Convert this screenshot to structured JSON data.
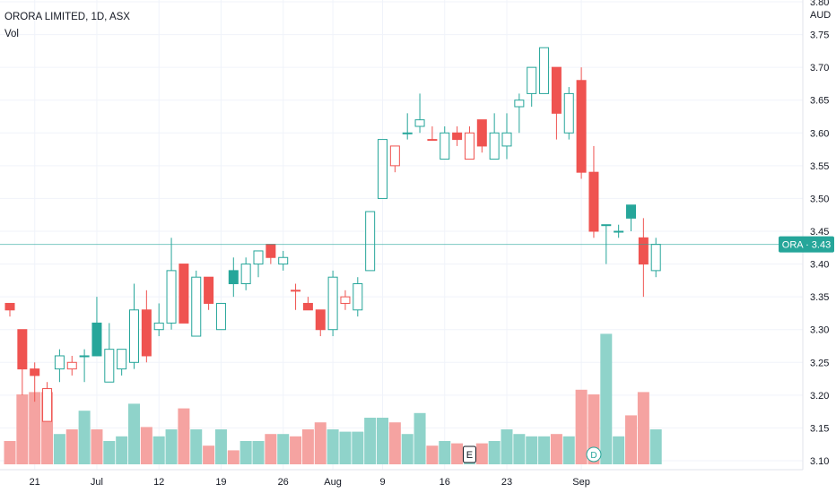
{
  "header": {
    "title": "ORORA LIMITED, 1D, ASX",
    "volume_label": "Vol",
    "currency": "AUD"
  },
  "price_tag": {
    "label": "ORA",
    "value": "3.43"
  },
  "markers": {
    "earnings": "E",
    "dividend": "D"
  },
  "colors": {
    "up": "#26a69a",
    "down": "#ef5350",
    "up_volume": "#8fd3ca",
    "down_volume": "#f5a3a1",
    "grid": "#f0f3fa",
    "price_line": "#26a69a"
  },
  "chart_data": {
    "type": "candlestick",
    "symbol": "ORA",
    "y_axis": {
      "min": 3.1,
      "max": 3.8,
      "ticks": [
        "3.80",
        "3.75",
        "3.70",
        "3.65",
        "3.60",
        "3.55",
        "3.50",
        "3.45",
        "3.40",
        "3.35",
        "3.30",
        "3.25",
        "3.20",
        "3.15",
        "3.10"
      ]
    },
    "x_axis": {
      "labels": [
        "21",
        "Jul",
        "12",
        "19",
        "26",
        "Aug",
        "9",
        "16",
        "23",
        "Sep"
      ],
      "label_positions": [
        2,
        7,
        12,
        17,
        22,
        26,
        30,
        35,
        40,
        46
      ]
    },
    "last_price": 3.43,
    "earnings_index": 37,
    "dividend_index": 47,
    "candles": [
      {
        "o": 3.34,
        "h": 3.34,
        "l": 3.32,
        "c": 3.33,
        "up": false,
        "hollow": false
      },
      {
        "o": 3.3,
        "h": 3.3,
        "l": 3.2,
        "c": 3.24,
        "up": false,
        "hollow": false
      },
      {
        "o": 3.24,
        "h": 3.25,
        "l": 3.19,
        "c": 3.23,
        "up": false,
        "hollow": false
      },
      {
        "o": 3.21,
        "h": 3.22,
        "l": 3.16,
        "c": 3.16,
        "up": false,
        "hollow": true
      },
      {
        "o": 3.24,
        "h": 3.27,
        "l": 3.22,
        "c": 3.26,
        "up": true,
        "hollow": true
      },
      {
        "o": 3.25,
        "h": 3.26,
        "l": 3.23,
        "c": 3.24,
        "up": false,
        "hollow": true
      },
      {
        "o": 3.26,
        "h": 3.27,
        "l": 3.22,
        "c": 3.26,
        "up": true,
        "hollow": true
      },
      {
        "o": 3.26,
        "h": 3.35,
        "l": 3.26,
        "c": 3.31,
        "up": true,
        "hollow": false
      },
      {
        "o": 3.22,
        "h": 3.31,
        "l": 3.22,
        "c": 3.27,
        "up": true,
        "hollow": true
      },
      {
        "o": 3.24,
        "h": 3.27,
        "l": 3.23,
        "c": 3.27,
        "up": true,
        "hollow": true
      },
      {
        "o": 3.25,
        "h": 3.37,
        "l": 3.24,
        "c": 3.33,
        "up": true,
        "hollow": true
      },
      {
        "o": 3.33,
        "h": 3.36,
        "l": 3.25,
        "c": 3.26,
        "up": false,
        "hollow": false
      },
      {
        "o": 3.3,
        "h": 3.34,
        "l": 3.29,
        "c": 3.31,
        "up": true,
        "hollow": true
      },
      {
        "o": 3.31,
        "h": 3.44,
        "l": 3.3,
        "c": 3.39,
        "up": true,
        "hollow": true
      },
      {
        "o": 3.4,
        "h": 3.4,
        "l": 3.31,
        "c": 3.31,
        "up": false,
        "hollow": false
      },
      {
        "o": 3.29,
        "h": 3.39,
        "l": 3.29,
        "c": 3.38,
        "up": true,
        "hollow": true
      },
      {
        "o": 3.38,
        "h": 3.38,
        "l": 3.33,
        "c": 3.34,
        "up": false,
        "hollow": false
      },
      {
        "o": 3.3,
        "h": 3.34,
        "l": 3.3,
        "c": 3.34,
        "up": true,
        "hollow": true
      },
      {
        "o": 3.37,
        "h": 3.41,
        "l": 3.35,
        "c": 3.39,
        "up": true,
        "hollow": false
      },
      {
        "o": 3.37,
        "h": 3.41,
        "l": 3.36,
        "c": 3.4,
        "up": true,
        "hollow": true
      },
      {
        "o": 3.4,
        "h": 3.42,
        "l": 3.38,
        "c": 3.42,
        "up": true,
        "hollow": true
      },
      {
        "o": 3.43,
        "h": 3.43,
        "l": 3.4,
        "c": 3.41,
        "up": false,
        "hollow": false
      },
      {
        "o": 3.4,
        "h": 3.42,
        "l": 3.39,
        "c": 3.41,
        "up": true,
        "hollow": true
      },
      {
        "o": 3.36,
        "h": 3.37,
        "l": 3.33,
        "c": 3.36,
        "up": false,
        "hollow": false
      },
      {
        "o": 3.34,
        "h": 3.35,
        "l": 3.33,
        "c": 3.33,
        "up": false,
        "hollow": false
      },
      {
        "o": 3.33,
        "h": 3.33,
        "l": 3.29,
        "c": 3.3,
        "up": false,
        "hollow": false
      },
      {
        "o": 3.3,
        "h": 3.39,
        "l": 3.29,
        "c": 3.38,
        "up": true,
        "hollow": true
      },
      {
        "o": 3.35,
        "h": 3.36,
        "l": 3.33,
        "c": 3.34,
        "up": false,
        "hollow": true
      },
      {
        "o": 3.33,
        "h": 3.38,
        "l": 3.32,
        "c": 3.37,
        "up": true,
        "hollow": true
      },
      {
        "o": 3.39,
        "h": 3.48,
        "l": 3.39,
        "c": 3.48,
        "up": true,
        "hollow": true
      },
      {
        "o": 3.5,
        "h": 3.59,
        "l": 3.5,
        "c": 3.59,
        "up": true,
        "hollow": true
      },
      {
        "o": 3.55,
        "h": 3.58,
        "l": 3.54,
        "c": 3.58,
        "up": false,
        "hollow": true
      },
      {
        "o": 3.6,
        "h": 3.63,
        "l": 3.59,
        "c": 3.6,
        "up": true,
        "hollow": true
      },
      {
        "o": 3.61,
        "h": 3.66,
        "l": 3.6,
        "c": 3.62,
        "up": true,
        "hollow": true
      },
      {
        "o": 3.59,
        "h": 3.61,
        "l": 3.59,
        "c": 3.59,
        "up": false,
        "hollow": true
      },
      {
        "o": 3.56,
        "h": 3.61,
        "l": 3.56,
        "c": 3.6,
        "up": true,
        "hollow": true
      },
      {
        "o": 3.6,
        "h": 3.61,
        "l": 3.58,
        "c": 3.59,
        "up": false,
        "hollow": false
      },
      {
        "o": 3.6,
        "h": 3.61,
        "l": 3.56,
        "c": 3.56,
        "up": false,
        "hollow": true
      },
      {
        "o": 3.62,
        "h": 3.62,
        "l": 3.57,
        "c": 3.58,
        "up": false,
        "hollow": false
      },
      {
        "o": 3.56,
        "h": 3.63,
        "l": 3.56,
        "c": 3.6,
        "up": true,
        "hollow": true
      },
      {
        "o": 3.58,
        "h": 3.63,
        "l": 3.56,
        "c": 3.6,
        "up": true,
        "hollow": true
      },
      {
        "o": 3.64,
        "h": 3.66,
        "l": 3.6,
        "c": 3.65,
        "up": true,
        "hollow": true
      },
      {
        "o": 3.66,
        "h": 3.7,
        "l": 3.64,
        "c": 3.7,
        "up": true,
        "hollow": true
      },
      {
        "o": 3.66,
        "h": 3.73,
        "l": 3.66,
        "c": 3.73,
        "up": true,
        "hollow": true
      },
      {
        "o": 3.7,
        "h": 3.7,
        "l": 3.59,
        "c": 3.63,
        "up": false,
        "hollow": false
      },
      {
        "o": 3.6,
        "h": 3.67,
        "l": 3.59,
        "c": 3.66,
        "up": true,
        "hollow": true
      },
      {
        "o": 3.68,
        "h": 3.7,
        "l": 3.53,
        "c": 3.54,
        "up": false,
        "hollow": false
      },
      {
        "o": 3.54,
        "h": 3.58,
        "l": 3.44,
        "c": 3.45,
        "up": false,
        "hollow": false
      },
      {
        "o": 3.46,
        "h": 3.46,
        "l": 3.4,
        "c": 3.46,
        "up": true,
        "hollow": true
      },
      {
        "o": 3.45,
        "h": 3.46,
        "l": 3.44,
        "c": 3.45,
        "up": true,
        "hollow": true
      },
      {
        "o": 3.47,
        "h": 3.49,
        "l": 3.45,
        "c": 3.49,
        "up": true,
        "hollow": false
      },
      {
        "o": 3.44,
        "h": 3.47,
        "l": 3.35,
        "c": 3.4,
        "up": false,
        "hollow": false
      },
      {
        "o": 3.39,
        "h": 3.44,
        "l": 3.38,
        "c": 3.43,
        "up": true,
        "hollow": true
      }
    ],
    "volumes": [
      {
        "v": 1.0,
        "up": false
      },
      {
        "v": 3.0,
        "up": false
      },
      {
        "v": 3.1,
        "up": false
      },
      {
        "v": 3.1,
        "up": false
      },
      {
        "v": 1.3,
        "up": true
      },
      {
        "v": 1.5,
        "up": false
      },
      {
        "v": 2.3,
        "up": true
      },
      {
        "v": 1.5,
        "up": false
      },
      {
        "v": 1.0,
        "up": true
      },
      {
        "v": 1.2,
        "up": true
      },
      {
        "v": 2.6,
        "up": true
      },
      {
        "v": 1.6,
        "up": false
      },
      {
        "v": 1.2,
        "up": true
      },
      {
        "v": 1.5,
        "up": true
      },
      {
        "v": 2.4,
        "up": false
      },
      {
        "v": 1.5,
        "up": true
      },
      {
        "v": 0.8,
        "up": false
      },
      {
        "v": 1.5,
        "up": true
      },
      {
        "v": 0.6,
        "up": false
      },
      {
        "v": 1.0,
        "up": true
      },
      {
        "v": 1.0,
        "up": true
      },
      {
        "v": 1.3,
        "up": false
      },
      {
        "v": 1.3,
        "up": true
      },
      {
        "v": 1.2,
        "up": false
      },
      {
        "v": 1.5,
        "up": false
      },
      {
        "v": 1.8,
        "up": false
      },
      {
        "v": 1.5,
        "up": true
      },
      {
        "v": 1.4,
        "up": true
      },
      {
        "v": 1.4,
        "up": true
      },
      {
        "v": 2.0,
        "up": true
      },
      {
        "v": 2.0,
        "up": true
      },
      {
        "v": 1.8,
        "up": false
      },
      {
        "v": 1.3,
        "up": true
      },
      {
        "v": 2.2,
        "up": true
      },
      {
        "v": 0.8,
        "up": false
      },
      {
        "v": 1.0,
        "up": true
      },
      {
        "v": 0.9,
        "up": false
      },
      {
        "v": 0.5,
        "up": true
      },
      {
        "v": 0.9,
        "up": false
      },
      {
        "v": 1.0,
        "up": true
      },
      {
        "v": 1.5,
        "up": true
      },
      {
        "v": 1.3,
        "up": true
      },
      {
        "v": 1.2,
        "up": true
      },
      {
        "v": 1.2,
        "up": true
      },
      {
        "v": 1.3,
        "up": false
      },
      {
        "v": 1.2,
        "up": true
      },
      {
        "v": 3.2,
        "up": false
      },
      {
        "v": 3.0,
        "up": false
      },
      {
        "v": 5.6,
        "up": true
      },
      {
        "v": 1.2,
        "up": true
      },
      {
        "v": 2.1,
        "up": false
      },
      {
        "v": 3.1,
        "up": false
      },
      {
        "v": 1.5,
        "up": true
      }
    ]
  }
}
